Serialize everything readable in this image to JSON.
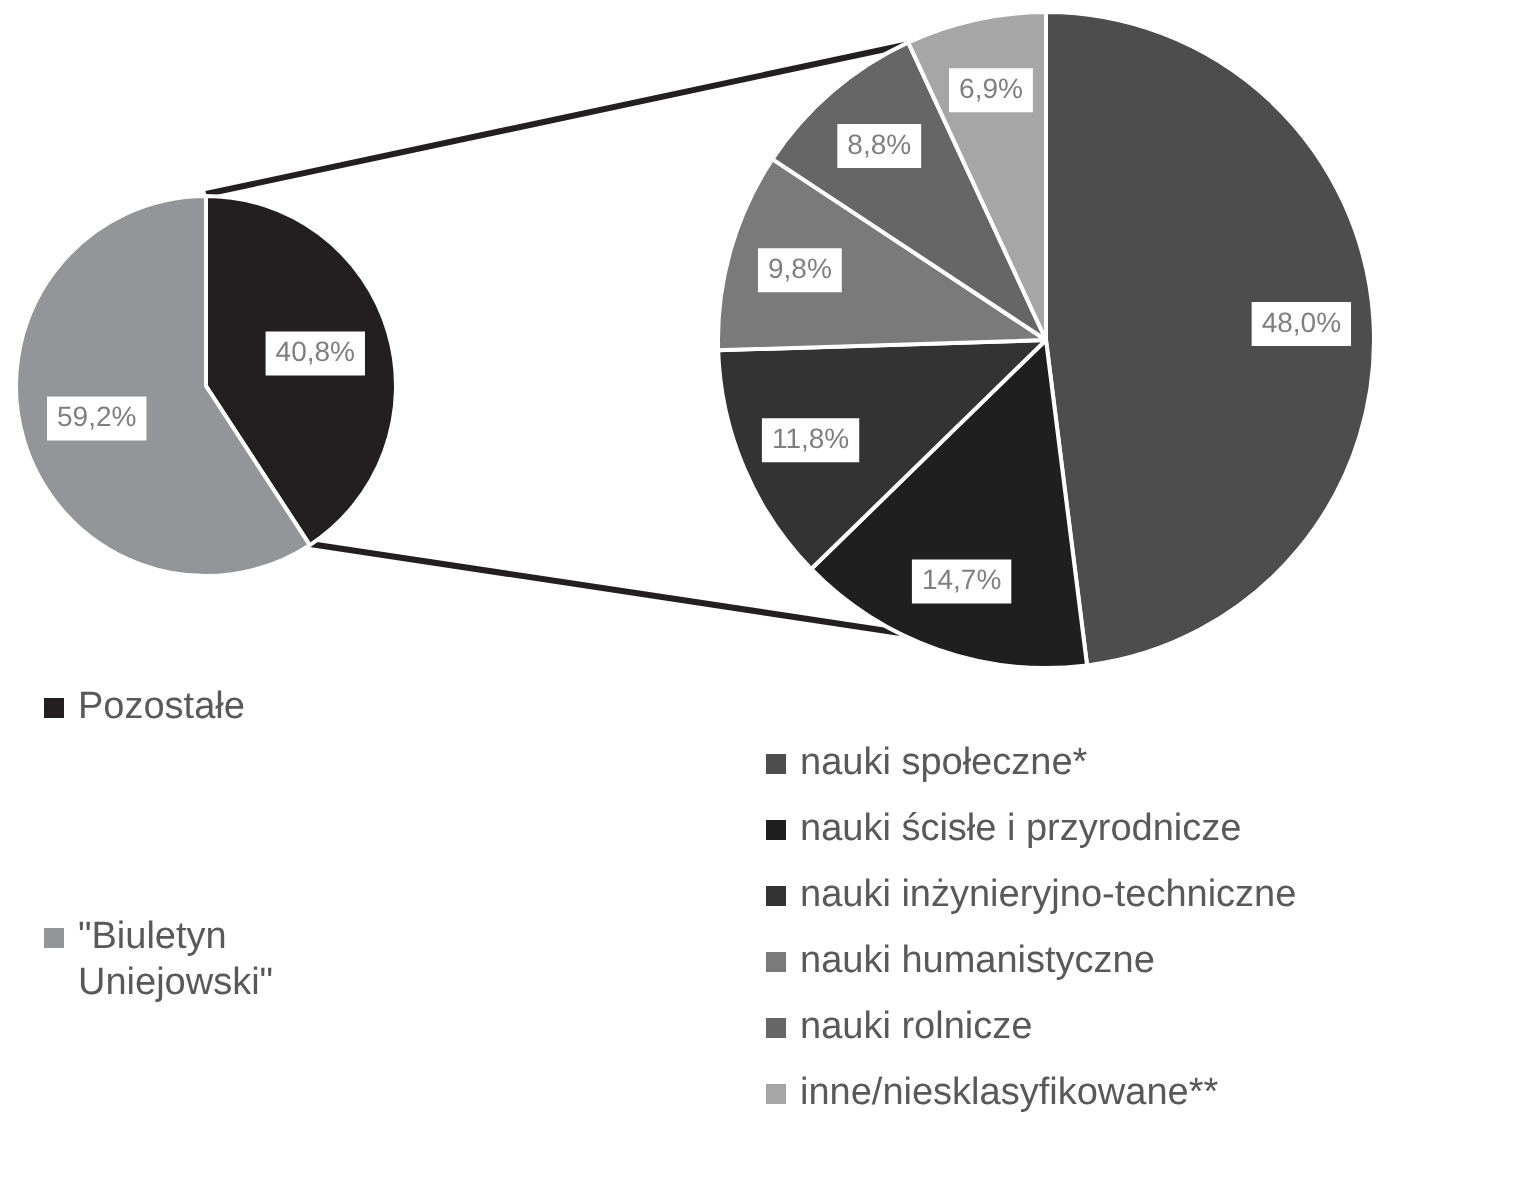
{
  "chart_data": [
    {
      "type": "pie",
      "categories": [
        "Pozostałe",
        "\"Biuletyn Uniejowski\""
      ],
      "values": [
        40.8,
        59.2
      ],
      "colors": [
        "#231f20",
        "#939598"
      ],
      "value_labels": [
        "40,8%",
        "59,2%"
      ],
      "legend": "bottom"
    },
    {
      "type": "pie",
      "categories": [
        "nauki społeczne*",
        "nauki ścisłe i przyrodnicze",
        "nauki inżynieryjno-techniczne",
        "nauki humanistyczne",
        "nauki rolnicze",
        "inne/niesklasyfikowane**"
      ],
      "values": [
        48.0,
        14.7,
        11.8,
        9.8,
        8.8,
        6.9
      ],
      "colors": [
        "#4d4d4d",
        "#1f1f1f",
        "#333333",
        "#7a7a7a",
        "#666666",
        "#a6a6a6"
      ],
      "value_labels": [
        "48,0%",
        "14,7%",
        "11,8%",
        "9,8%",
        "8,8%",
        "6,9%"
      ],
      "legend": "bottom"
    }
  ]
}
